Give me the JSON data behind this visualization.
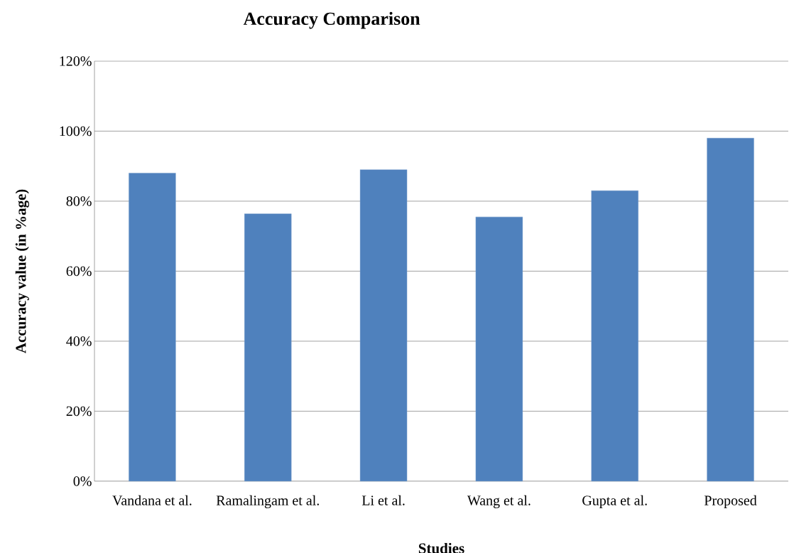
{
  "chart_data": {
    "type": "bar",
    "title": "Accuracy Comparison",
    "xlabel": "Studies",
    "ylabel": "Accuracy value (in %age)",
    "categories": [
      "Vandana et al.",
      "Ramalingam et al.",
      "Li et al.",
      "Wang et al.",
      "Gupta et al.",
      "Proposed"
    ],
    "values": [
      88,
      76.4,
      89,
      75.5,
      83,
      98
    ],
    "color": "#4f81bd",
    "ylim": [
      0,
      120
    ],
    "yticks": [
      {
        "value": 0,
        "label": "0%"
      },
      {
        "value": 20,
        "label": "20%"
      },
      {
        "value": 40,
        "label": "40%"
      },
      {
        "value": 60,
        "label": "60%"
      },
      {
        "value": 80,
        "label": "80%"
      },
      {
        "value": 100,
        "label": "100%"
      },
      {
        "value": 120,
        "label": "120%"
      }
    ],
    "grid": "y"
  }
}
